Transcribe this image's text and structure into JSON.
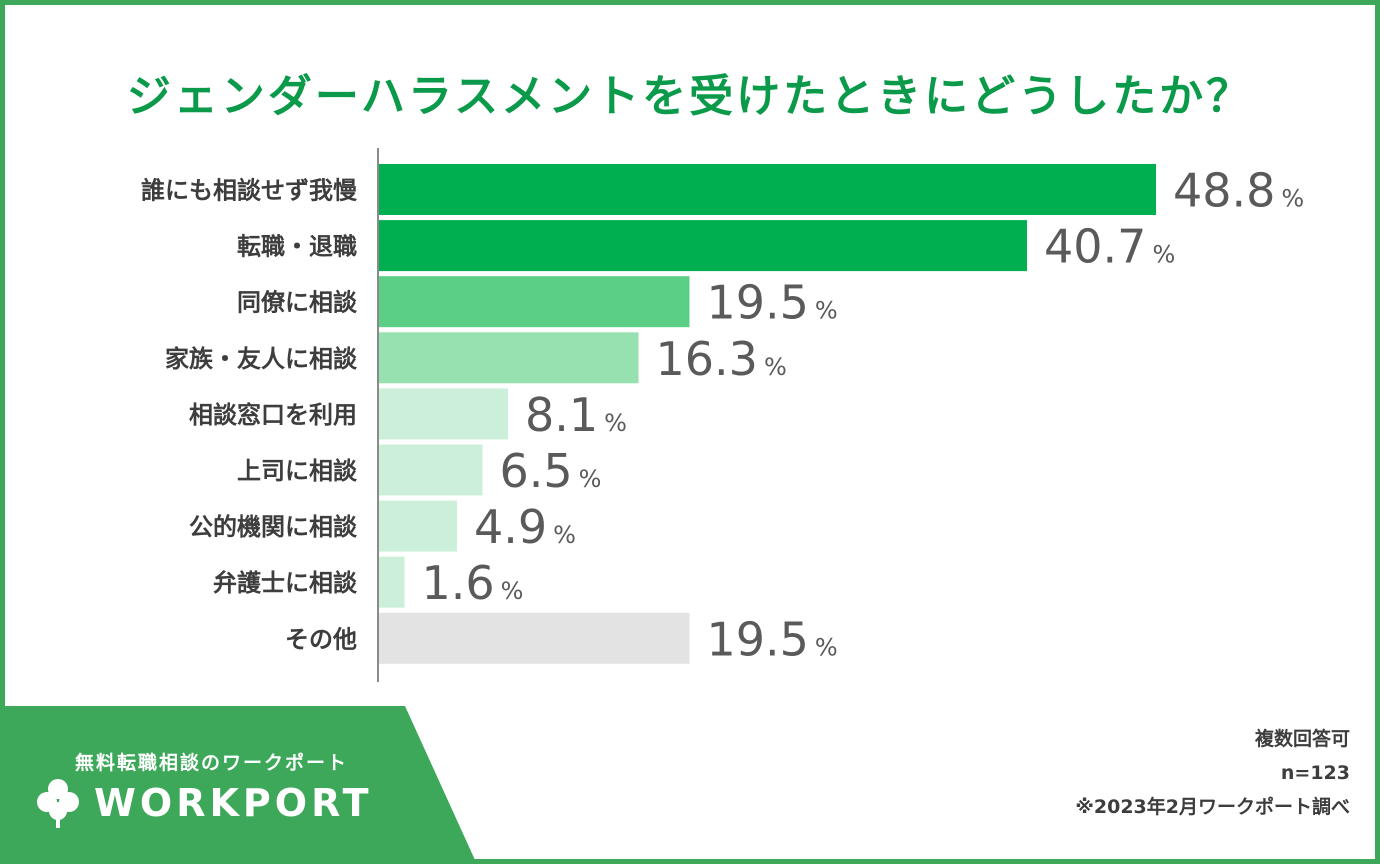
{
  "chart_data": {
    "type": "bar",
    "orientation": "horizontal",
    "title": "ジェンダーハラスメントを受けたときにどうしたか？",
    "categories": [
      "誰にも相談せず我慢",
      "転職・退職",
      "同僚に相談",
      "家族・友人に相談",
      "相談窓口を利用",
      "上司に相談",
      "公的機関に相談",
      "弁護士に相談",
      "その他"
    ],
    "values": [
      48.8,
      40.7,
      19.5,
      16.3,
      8.1,
      6.5,
      4.9,
      1.6,
      19.5
    ],
    "value_labels": [
      "48.8",
      "40.7",
      "19.5",
      "16.3",
      "8.1",
      "6.5",
      "4.9",
      "1.6",
      "19.5"
    ],
    "unit": "%",
    "colors": [
      "#00b050",
      "#00b050",
      "#5ccf86",
      "#97e0b0",
      "#ccefda",
      "#ccefda",
      "#ccefda",
      "#ccefda",
      "#e3e3e3"
    ],
    "xlim": [
      0,
      55
    ]
  },
  "footer": {
    "tagline": "無料転職相談のワークポート",
    "logo_text": "WORKPORT",
    "note_multi": "複数回答可",
    "note_n": "n=123",
    "note_source": "※2023年2月ワークポート調べ"
  },
  "theme": {
    "brand_green": "#3ea85a",
    "title_green": "#0b9a4a"
  }
}
